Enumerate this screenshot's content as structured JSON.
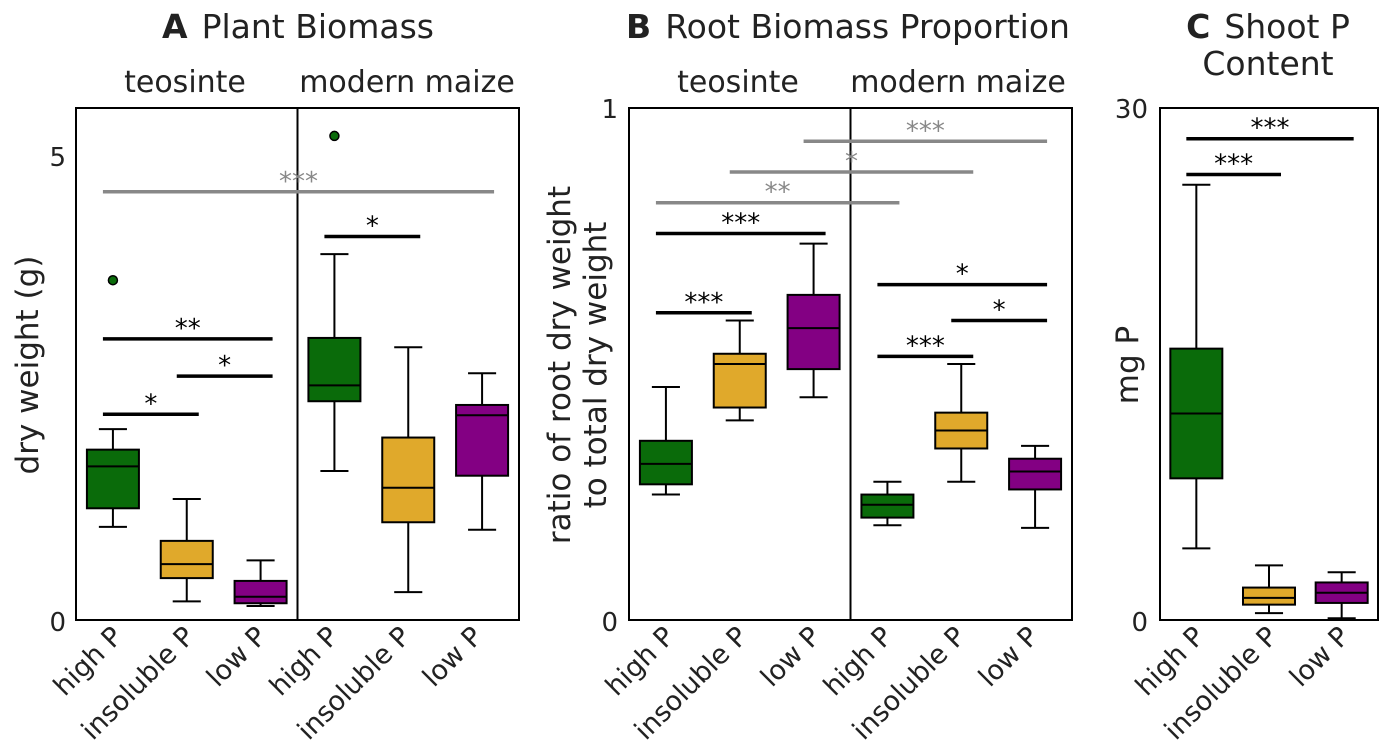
{
  "colors": {
    "teal_green": "#0a6b0a",
    "gold": "#e0a92b",
    "purple": "#830083",
    "grey": "#888888",
    "black": "#000000"
  },
  "chart_data": [
    {
      "type": "box",
      "panel_letter": "A",
      "title": "Plant Biomass",
      "ylabel": "dry weight (g)",
      "ylim": [
        0,
        5.5
      ],
      "yticks": [
        0,
        5
      ],
      "groups": [
        "teosinte",
        "modern maize"
      ],
      "categories": [
        "high P",
        "insoluble P",
        "low P",
        "high P",
        "insoluble P",
        "low P"
      ],
      "boxes": [
        {
          "group": "teosinte",
          "treatment": "high P",
          "color": "green",
          "whislo": 1.0,
          "q1": 1.2,
          "med": 1.65,
          "q3": 1.83,
          "whishi": 2.05,
          "fliers": [
            3.65
          ]
        },
        {
          "group": "teosinte",
          "treatment": "insoluble P",
          "color": "gold",
          "whislo": 0.2,
          "q1": 0.45,
          "med": 0.6,
          "q3": 0.85,
          "whishi": 1.3,
          "fliers": []
        },
        {
          "group": "teosinte",
          "treatment": "low P",
          "color": "purple",
          "whislo": 0.15,
          "q1": 0.18,
          "med": 0.25,
          "q3": 0.42,
          "whishi": 0.64,
          "fliers": []
        },
        {
          "group": "modern maize",
          "treatment": "high P",
          "color": "green",
          "whislo": 1.6,
          "q1": 2.35,
          "med": 2.52,
          "q3": 3.03,
          "whishi": 3.93,
          "fliers": [
            5.2
          ]
        },
        {
          "group": "modern maize",
          "treatment": "insoluble P",
          "color": "gold",
          "whislo": 0.3,
          "q1": 1.05,
          "med": 1.42,
          "q3": 1.96,
          "whishi": 2.93,
          "fliers": []
        },
        {
          "group": "modern maize",
          "treatment": "low P",
          "color": "purple",
          "whislo": 0.97,
          "q1": 1.55,
          "med": 2.2,
          "q3": 2.31,
          "whishi": 2.65,
          "fliers": []
        }
      ],
      "significance": [
        {
          "from": 1,
          "to": 6,
          "y": 4.6,
          "label": "***",
          "color": "grey"
        },
        {
          "from": 4,
          "to": 5,
          "y": 4.12,
          "label": "*",
          "color": "black"
        },
        {
          "from": 1,
          "to": 3,
          "y": 3.02,
          "label": "**",
          "color": "black"
        },
        {
          "from": 2,
          "to": 3,
          "y": 2.62,
          "label": "*",
          "color": "black"
        },
        {
          "from": 1,
          "to": 2,
          "y": 2.21,
          "label": "*",
          "color": "black"
        }
      ]
    },
    {
      "type": "box",
      "panel_letter": "B",
      "title": "Root Biomass Proportion",
      "ylabel": [
        "ratio of root dry weight",
        "to total dry weight"
      ],
      "ylim": [
        0,
        1
      ],
      "yticks": [
        0,
        1
      ],
      "groups": [
        "teosinte",
        "modern maize"
      ],
      "categories": [
        "high P",
        "insoluble P",
        "low P",
        "high P",
        "insoluble P",
        "low P"
      ],
      "boxes": [
        {
          "group": "teosinte",
          "treatment": "high P",
          "color": "green",
          "whislo": 0.245,
          "q1": 0.265,
          "med": 0.305,
          "q3": 0.35,
          "whishi": 0.455,
          "fliers": []
        },
        {
          "group": "teosinte",
          "treatment": "insoluble P",
          "color": "gold",
          "whislo": 0.39,
          "q1": 0.415,
          "med": 0.5,
          "q3": 0.52,
          "whishi": 0.585,
          "fliers": []
        },
        {
          "group": "teosinte",
          "treatment": "low P",
          "color": "purple",
          "whislo": 0.435,
          "q1": 0.49,
          "med": 0.57,
          "q3": 0.635,
          "whishi": 0.735,
          "fliers": []
        },
        {
          "group": "modern maize",
          "treatment": "high P",
          "color": "green",
          "whislo": 0.185,
          "q1": 0.2,
          "med": 0.225,
          "q3": 0.245,
          "whishi": 0.27,
          "fliers": []
        },
        {
          "group": "modern maize",
          "treatment": "insoluble P",
          "color": "gold",
          "whislo": 0.27,
          "q1": 0.335,
          "med": 0.37,
          "q3": 0.405,
          "whishi": 0.5,
          "fliers": []
        },
        {
          "group": "modern maize",
          "treatment": "low P",
          "color": "purple",
          "whislo": 0.18,
          "q1": 0.255,
          "med": 0.29,
          "q3": 0.315,
          "whishi": 0.34,
          "fliers": []
        }
      ],
      "significance": [
        {
          "from": 3,
          "to": 6,
          "y": 0.935,
          "label": "***",
          "color": "grey"
        },
        {
          "from": 2,
          "to": 5,
          "y": 0.875,
          "label": "*",
          "color": "grey"
        },
        {
          "from": 1,
          "to": 4,
          "y": 0.815,
          "label": "**",
          "color": "grey"
        },
        {
          "from": 1,
          "to": 3,
          "y": 0.755,
          "label": "***",
          "color": "black"
        },
        {
          "from": 1,
          "to": 2,
          "y": 0.6,
          "label": "***",
          "color": "black"
        },
        {
          "from": 4,
          "to": 6,
          "y": 0.655,
          "label": "*",
          "color": "black"
        },
        {
          "from": 5,
          "to": 6,
          "y": 0.585,
          "label": "*",
          "color": "black"
        },
        {
          "from": 4,
          "to": 5,
          "y": 0.515,
          "label": "***",
          "color": "black"
        }
      ]
    },
    {
      "type": "box",
      "panel_letter": "C",
      "title": [
        "Shoot P",
        "Content"
      ],
      "ylabel": "mg P",
      "ylim": [
        0,
        30
      ],
      "yticks": [
        0,
        30
      ],
      "categories": [
        "high P",
        "insoluble P",
        "low P"
      ],
      "boxes": [
        {
          "treatment": "high P",
          "color": "green",
          "whislo": 4.2,
          "q1": 8.3,
          "med": 12.1,
          "q3": 15.9,
          "whishi": 25.5,
          "fliers": []
        },
        {
          "treatment": "insoluble P",
          "color": "gold",
          "whislo": 0.4,
          "q1": 0.9,
          "med": 1.3,
          "q3": 1.9,
          "whishi": 3.2,
          "fliers": []
        },
        {
          "treatment": "low P",
          "color": "purple",
          "whislo": 0.1,
          "q1": 1.0,
          "med": 1.6,
          "q3": 2.2,
          "whishi": 2.8,
          "fliers": []
        }
      ],
      "significance": [
        {
          "from": 1,
          "to": 3,
          "y": 28.2,
          "label": "***",
          "color": "black"
        },
        {
          "from": 1,
          "to": 2,
          "y": 26.1,
          "label": "***",
          "color": "black"
        }
      ]
    }
  ]
}
